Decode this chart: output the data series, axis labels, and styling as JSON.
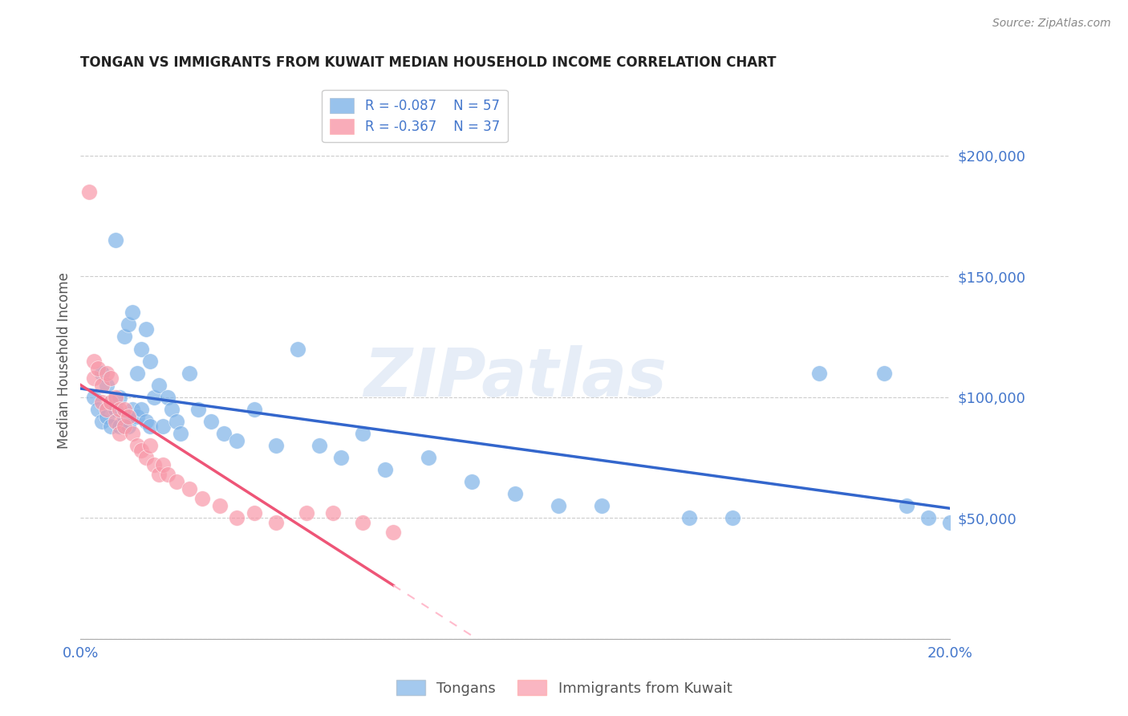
{
  "title": "TONGAN VS IMMIGRANTS FROM KUWAIT MEDIAN HOUSEHOLD INCOME CORRELATION CHART",
  "source": "Source: ZipAtlas.com",
  "ylabel": "Median Household Income",
  "xlim": [
    0,
    0.2
  ],
  "ylim": [
    0,
    230000
  ],
  "yticks": [
    0,
    50000,
    100000,
    150000,
    200000
  ],
  "ytick_labels": [
    "",
    "$50,000",
    "$100,000",
    "$150,000",
    "$200,000"
  ],
  "xticks": [
    0.0,
    0.02,
    0.04,
    0.06,
    0.08,
    0.1,
    0.12,
    0.14,
    0.16,
    0.18,
    0.2
  ],
  "xtick_labels": [
    "0.0%",
    "",
    "",
    "",
    "",
    "",
    "",
    "",
    "",
    "",
    "20.0%"
  ],
  "watermark": "ZIPatlas",
  "legend_r1": "R = -0.087",
  "legend_n1": "N = 57",
  "legend_r2": "R = -0.367",
  "legend_n2": "N = 37",
  "color_blue": "#7EB3E8",
  "color_pink": "#F898A8",
  "color_blue_line": "#3366CC",
  "color_pink_line": "#EE5577",
  "color_pink_dash": "#FFBBCC",
  "color_axis_labels": "#4477CC",
  "background_color": "#FFFFFF",
  "title_color": "#222222",
  "tongans_x": [
    0.003,
    0.004,
    0.005,
    0.005,
    0.006,
    0.006,
    0.007,
    0.007,
    0.008,
    0.008,
    0.009,
    0.009,
    0.01,
    0.01,
    0.011,
    0.011,
    0.012,
    0.012,
    0.013,
    0.013,
    0.014,
    0.014,
    0.015,
    0.015,
    0.016,
    0.016,
    0.017,
    0.018,
    0.019,
    0.02,
    0.021,
    0.022,
    0.023,
    0.025,
    0.027,
    0.03,
    0.033,
    0.036,
    0.04,
    0.045,
    0.05,
    0.055,
    0.06,
    0.065,
    0.07,
    0.08,
    0.09,
    0.1,
    0.11,
    0.12,
    0.14,
    0.15,
    0.17,
    0.185,
    0.19,
    0.195,
    0.2
  ],
  "tongans_y": [
    100000,
    95000,
    110000,
    90000,
    105000,
    92000,
    98000,
    88000,
    165000,
    95000,
    100000,
    88000,
    125000,
    92000,
    130000,
    88000,
    135000,
    95000,
    110000,
    92000,
    120000,
    95000,
    128000,
    90000,
    115000,
    88000,
    100000,
    105000,
    88000,
    100000,
    95000,
    90000,
    85000,
    110000,
    95000,
    90000,
    85000,
    82000,
    95000,
    80000,
    120000,
    80000,
    75000,
    85000,
    70000,
    75000,
    65000,
    60000,
    55000,
    55000,
    50000,
    50000,
    110000,
    110000,
    55000,
    50000,
    48000
  ],
  "kuwait_x": [
    0.002,
    0.003,
    0.003,
    0.004,
    0.005,
    0.005,
    0.006,
    0.006,
    0.007,
    0.007,
    0.008,
    0.008,
    0.009,
    0.009,
    0.01,
    0.01,
    0.011,
    0.012,
    0.013,
    0.014,
    0.015,
    0.016,
    0.017,
    0.018,
    0.019,
    0.02,
    0.022,
    0.025,
    0.028,
    0.032,
    0.036,
    0.04,
    0.045,
    0.052,
    0.058,
    0.065,
    0.072
  ],
  "kuwait_y": [
    185000,
    115000,
    108000,
    112000,
    105000,
    98000,
    110000,
    95000,
    108000,
    98000,
    100000,
    90000,
    95000,
    85000,
    95000,
    88000,
    92000,
    85000,
    80000,
    78000,
    75000,
    80000,
    72000,
    68000,
    72000,
    68000,
    65000,
    62000,
    58000,
    55000,
    50000,
    52000,
    48000,
    52000,
    52000,
    48000,
    44000
  ]
}
